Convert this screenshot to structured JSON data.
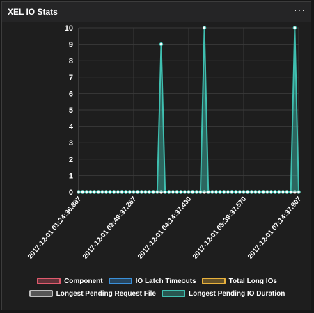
{
  "widget": {
    "title": "XEL IO Stats",
    "menu_icon": "more-horizontal-icon",
    "menu_glyph": "···"
  },
  "chart_data": {
    "type": "line",
    "title": "XEL IO Stats",
    "xlabel": "",
    "ylabel": "",
    "ylim": [
      0,
      10
    ],
    "yticks": [
      0,
      1,
      2,
      3,
      4,
      5,
      6,
      7,
      8,
      9,
      10
    ],
    "grid": true,
    "legend_position": "bottom",
    "x_tick_labels": [
      "2017-12-01 01:24:36.887",
      "2017-12-01 02:49:37.267",
      "2017-12-01 04:14:37.430",
      "2017-12-01 05:39:37.570",
      "2017-12-01 07:14:37.907"
    ],
    "num_points": 57,
    "series": [
      {
        "name": "Component",
        "color": "#e05a6d",
        "values": [
          0,
          0,
          0,
          0,
          0,
          0,
          0,
          0,
          0,
          0,
          0,
          0,
          0,
          0,
          0,
          0,
          0,
          0,
          0,
          0,
          0,
          0,
          0,
          0,
          0,
          0,
          0,
          0,
          0,
          0,
          0,
          0,
          0,
          0,
          0,
          0,
          0,
          0,
          0,
          0,
          0,
          0,
          0,
          0,
          0,
          0,
          0,
          0,
          0,
          0,
          0,
          0,
          0,
          0,
          0,
          0,
          0
        ]
      },
      {
        "name": "IO Latch Timeouts",
        "color": "#3a8fd8",
        "values": [
          0,
          0,
          0,
          0,
          0,
          0,
          0,
          0,
          0,
          0,
          0,
          0,
          0,
          0,
          0,
          0,
          0,
          0,
          0,
          0,
          0,
          0,
          0,
          0,
          0,
          0,
          0,
          0,
          0,
          0,
          0,
          0,
          0,
          0,
          0,
          0,
          0,
          0,
          0,
          0,
          0,
          0,
          0,
          0,
          0,
          0,
          0,
          0,
          0,
          0,
          0,
          0,
          0,
          0,
          0,
          0,
          0
        ]
      },
      {
        "name": "Total Long IOs",
        "color": "#e8b13c",
        "values": [
          0,
          0,
          0,
          0,
          0,
          0,
          0,
          0,
          0,
          0,
          0,
          0,
          0,
          0,
          0,
          0,
          0,
          0,
          0,
          0,
          0,
          0,
          0,
          0,
          0,
          0,
          0,
          0,
          0,
          0,
          0,
          0,
          0,
          0,
          0,
          0,
          0,
          0,
          0,
          0,
          0,
          0,
          0,
          0,
          0,
          0,
          0,
          0,
          0,
          0,
          0,
          0,
          0,
          0,
          0,
          0,
          0
        ]
      },
      {
        "name": "Longest Pending Request File",
        "color": "#bfbfbf",
        "values": [
          0,
          0,
          0,
          0,
          0,
          0,
          0,
          0,
          0,
          0,
          0,
          0,
          0,
          0,
          0,
          0,
          0,
          0,
          0,
          0,
          0,
          0,
          0,
          0,
          0,
          0,
          0,
          0,
          0,
          0,
          0,
          0,
          0,
          0,
          0,
          0,
          0,
          0,
          0,
          0,
          0,
          0,
          0,
          0,
          0,
          0,
          0,
          0,
          0,
          0,
          0,
          0,
          0,
          0,
          0,
          0,
          0
        ]
      },
      {
        "name": "Longest Pending IO Duration",
        "color": "#3fbfb0",
        "values": [
          0,
          0,
          0,
          0,
          0,
          0,
          0,
          0,
          0,
          0,
          0,
          0,
          0,
          0,
          0,
          0,
          0,
          0,
          0,
          0,
          0,
          9,
          0,
          0,
          0,
          0,
          0,
          0,
          0,
          0,
          0,
          0,
          10,
          0,
          0,
          0,
          0,
          0,
          0,
          0,
          0,
          0,
          0,
          0,
          0,
          0,
          0,
          0,
          0,
          0,
          0,
          0,
          0,
          0,
          0,
          10,
          0
        ]
      }
    ]
  }
}
